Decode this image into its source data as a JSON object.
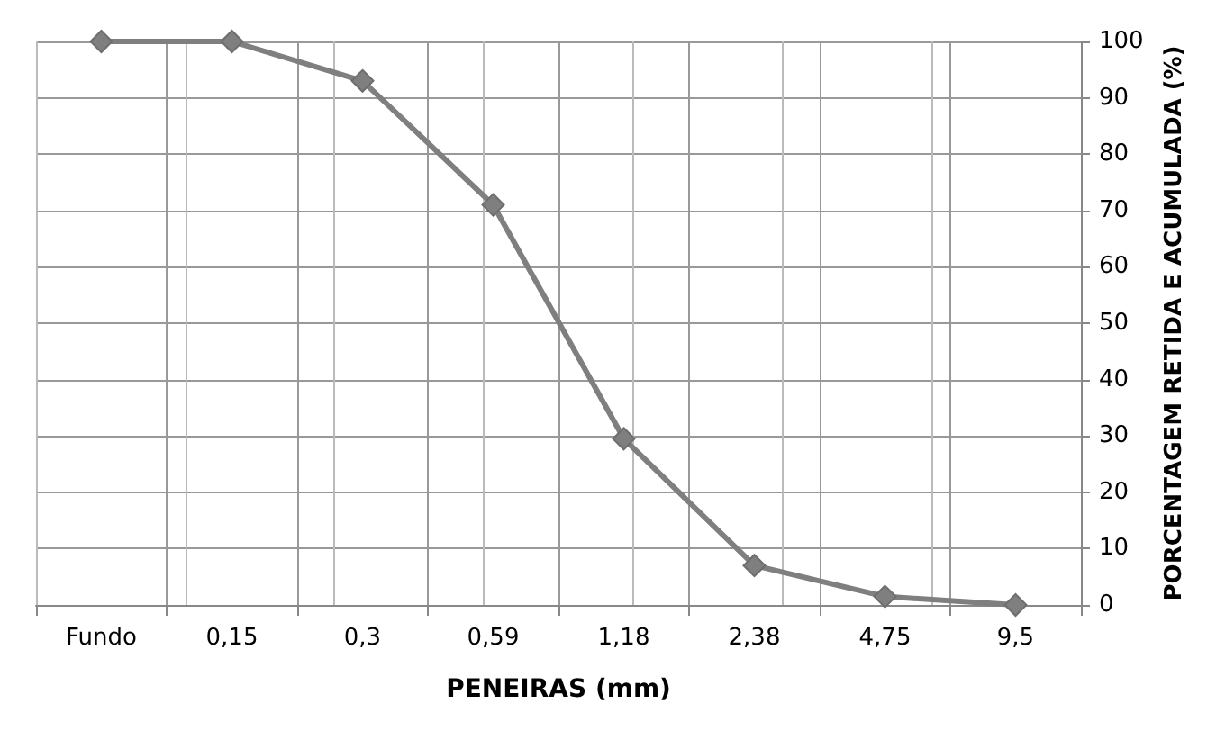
{
  "chart_data": {
    "type": "line",
    "xlabel": "PENEIRAS (mm)",
    "ylabel": "PORCENTAGEM RETIDA E ACUMULADA (%)",
    "categories": [
      "Fundo",
      "0,15",
      "0,3",
      "0,59",
      "1,18",
      "2,38",
      "4,75",
      "9,5"
    ],
    "series": [
      {
        "color": "#7f7f7f",
        "values": [
          100,
          100,
          93,
          71,
          29.5,
          7,
          1.5,
          0
        ]
      }
    ],
    "ylim": [
      0,
      100
    ],
    "yticks": [
      0,
      10,
      20,
      30,
      40,
      50,
      60,
      70,
      80,
      90,
      100
    ],
    "grid": true,
    "marker": "diamond",
    "line_style": "solid"
  }
}
